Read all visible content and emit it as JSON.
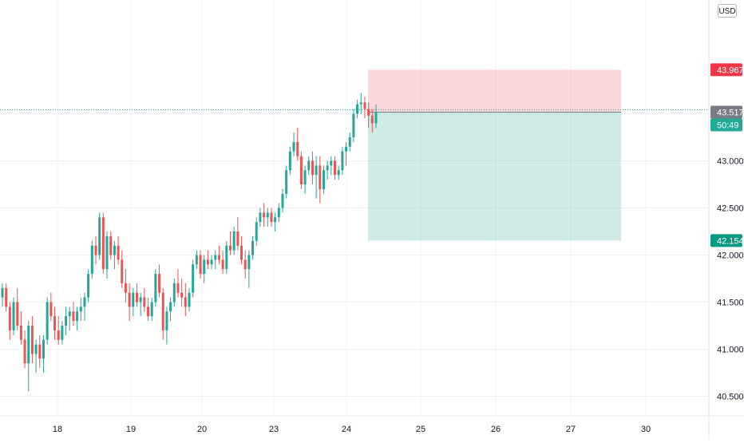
{
  "chart_data": {
    "type": "candlestick",
    "currency": "USD",
    "countdown": "50:49",
    "last_price": 43.517,
    "y_ticks": [
      40.5,
      41.0,
      41.5,
      42.0,
      42.5,
      43.0
    ],
    "x_ticks": [
      "18",
      "19",
      "20",
      "23",
      "24",
      "25",
      "26",
      "27",
      "30"
    ],
    "position": {
      "type": "short",
      "entry": 43.517,
      "stop": 43.967,
      "target": 42.154,
      "stop_label": "43.967",
      "entry_label": "43.517",
      "target_label": "42.154"
    },
    "candles": [
      [
        41.55,
        41.7,
        41.45,
        41.65
      ],
      [
        41.65,
        41.7,
        41.4,
        41.45
      ],
      [
        41.45,
        41.5,
        41.1,
        41.2
      ],
      [
        41.2,
        41.55,
        41.15,
        41.5
      ],
      [
        41.5,
        41.65,
        41.2,
        41.25
      ],
      [
        41.25,
        41.4,
        41.05,
        41.1
      ],
      [
        41.1,
        41.2,
        40.8,
        40.85
      ],
      [
        40.85,
        41.3,
        40.55,
        41.25
      ],
      [
        41.25,
        41.35,
        40.85,
        40.95
      ],
      [
        40.95,
        41.1,
        40.75,
        41.05
      ],
      [
        41.05,
        41.15,
        40.8,
        40.9
      ],
      [
        40.9,
        41.15,
        40.75,
        41.1
      ],
      [
        41.1,
        41.55,
        41.05,
        41.5
      ],
      [
        41.5,
        41.6,
        41.3,
        41.35
      ],
      [
        41.35,
        41.45,
        41.1,
        41.2
      ],
      [
        41.2,
        41.35,
        41.05,
        41.1
      ],
      [
        41.1,
        41.3,
        41.05,
        41.25
      ],
      [
        41.25,
        41.45,
        41.15,
        41.35
      ],
      [
        41.35,
        41.45,
        41.2,
        41.4
      ],
      [
        41.4,
        41.5,
        41.25,
        41.3
      ],
      [
        41.3,
        41.45,
        41.2,
        41.4
      ],
      [
        41.4,
        41.55,
        41.3,
        41.45
      ],
      [
        41.45,
        41.6,
        41.3,
        41.55
      ],
      [
        41.55,
        41.85,
        41.5,
        41.8
      ],
      [
        41.8,
        42.15,
        41.75,
        42.1
      ],
      [
        42.1,
        42.2,
        41.9,
        42.0
      ],
      [
        42.0,
        42.45,
        41.95,
        42.4
      ],
      [
        42.4,
        42.45,
        41.8,
        41.85
      ],
      [
        41.85,
        42.25,
        41.75,
        42.2
      ],
      [
        42.2,
        42.25,
        41.95,
        42.0
      ],
      [
        42.0,
        42.15,
        41.85,
        42.1
      ],
      [
        42.1,
        42.2,
        41.9,
        41.95
      ],
      [
        41.95,
        42.05,
        41.65,
        41.7
      ],
      [
        41.7,
        41.85,
        41.5,
        41.6
      ],
      [
        41.6,
        41.7,
        41.3,
        41.45
      ],
      [
        41.45,
        41.65,
        41.35,
        41.6
      ],
      [
        41.6,
        41.7,
        41.45,
        41.5
      ],
      [
        41.5,
        41.6,
        41.35,
        41.55
      ],
      [
        41.55,
        41.65,
        41.4,
        41.45
      ],
      [
        41.45,
        41.55,
        41.3,
        41.35
      ],
      [
        41.35,
        41.55,
        41.3,
        41.5
      ],
      [
        41.5,
        41.85,
        41.45,
        41.8
      ],
      [
        41.8,
        41.9,
        41.55,
        41.6
      ],
      [
        41.6,
        41.65,
        41.1,
        41.2
      ],
      [
        41.2,
        41.45,
        41.05,
        41.4
      ],
      [
        41.4,
        41.55,
        41.3,
        41.5
      ],
      [
        41.5,
        41.75,
        41.45,
        41.7
      ],
      [
        41.7,
        41.85,
        41.55,
        41.6
      ],
      [
        41.6,
        41.75,
        41.45,
        41.55
      ],
      [
        41.55,
        41.7,
        41.35,
        41.45
      ],
      [
        41.45,
        41.65,
        41.4,
        41.6
      ],
      [
        41.6,
        41.95,
        41.55,
        41.9
      ],
      [
        41.9,
        42.05,
        41.85,
        42.0
      ],
      [
        42.0,
        42.05,
        41.75,
        41.8
      ],
      [
        41.8,
        42.0,
        41.7,
        41.95
      ],
      [
        41.95,
        42.05,
        41.85,
        41.9
      ],
      [
        41.9,
        42.0,
        41.85,
        41.95
      ],
      [
        41.95,
        42.05,
        41.85,
        42.0
      ],
      [
        42.0,
        42.1,
        41.9,
        41.95
      ],
      [
        41.95,
        42.05,
        41.8,
        41.85
      ],
      [
        41.85,
        42.15,
        41.8,
        42.1
      ],
      [
        42.1,
        42.25,
        42.0,
        42.05
      ],
      [
        42.05,
        42.3,
        42.0,
        42.25
      ],
      [
        42.25,
        42.4,
        42.05,
        42.1
      ],
      [
        42.1,
        42.2,
        41.9,
        41.95
      ],
      [
        41.95,
        42.05,
        41.75,
        41.85
      ],
      [
        41.85,
        42.05,
        41.65,
        42.0
      ],
      [
        42.0,
        42.2,
        41.95,
        42.15
      ],
      [
        42.15,
        42.4,
        42.1,
        42.35
      ],
      [
        42.35,
        42.5,
        42.3,
        42.45
      ],
      [
        42.45,
        42.55,
        42.3,
        42.4
      ],
      [
        42.4,
        42.5,
        42.3,
        42.45
      ],
      [
        42.45,
        42.5,
        42.3,
        42.35
      ],
      [
        42.35,
        42.45,
        42.25,
        42.4
      ],
      [
        42.4,
        42.55,
        42.35,
        42.5
      ],
      [
        42.5,
        42.7,
        42.45,
        42.65
      ],
      [
        42.65,
        42.95,
        42.6,
        42.9
      ],
      [
        42.9,
        43.15,
        42.85,
        43.1
      ],
      [
        43.1,
        43.3,
        43.05,
        43.2
      ],
      [
        43.2,
        43.35,
        43.0,
        43.05
      ],
      [
        43.05,
        43.1,
        42.7,
        42.75
      ],
      [
        42.75,
        42.95,
        42.65,
        42.9
      ],
      [
        42.9,
        43.05,
        42.85,
        43.0
      ],
      [
        43.0,
        43.1,
        42.75,
        42.85
      ],
      [
        42.85,
        43.05,
        42.6,
        42.95
      ],
      [
        42.95,
        43.05,
        42.55,
        42.7
      ],
      [
        42.7,
        42.95,
        42.65,
        42.9
      ],
      [
        42.9,
        43.0,
        42.8,
        42.95
      ],
      [
        42.95,
        43.05,
        42.85,
        43.0
      ],
      [
        43.0,
        43.05,
        42.8,
        42.85
      ],
      [
        42.85,
        42.95,
        42.8,
        42.9
      ],
      [
        42.9,
        43.15,
        42.85,
        43.1
      ],
      [
        43.1,
        43.2,
        42.95,
        43.15
      ],
      [
        43.15,
        43.3,
        43.1,
        43.25
      ],
      [
        43.25,
        43.55,
        43.2,
        43.5
      ],
      [
        43.5,
        43.65,
        43.45,
        43.6
      ],
      [
        43.6,
        43.72,
        43.5,
        43.62
      ],
      [
        43.62,
        43.68,
        43.45,
        43.55
      ],
      [
        43.55,
        43.62,
        43.35,
        43.48
      ],
      [
        43.48,
        43.55,
        43.3,
        43.4
      ],
      [
        43.4,
        43.6,
        43.35,
        43.52
      ]
    ]
  }
}
